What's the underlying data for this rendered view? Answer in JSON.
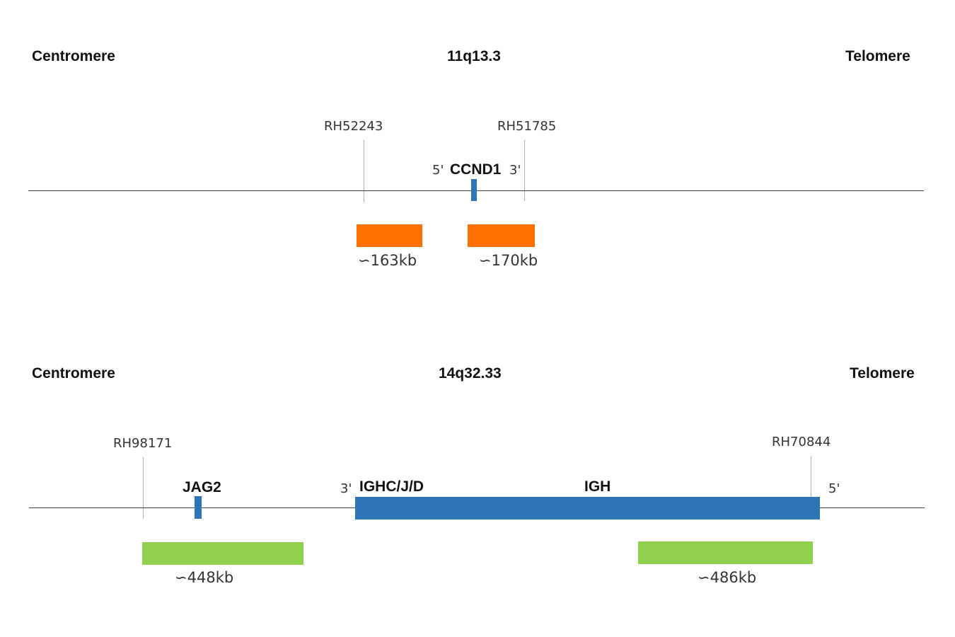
{
  "panel1": {
    "left_label": "Centromere",
    "band": "11q13.3",
    "right_label": "Telomere",
    "markers": [
      "RH52243",
      "RH51785"
    ],
    "gene": {
      "prime5": "5'",
      "name": "CCND1",
      "prime3": "3'"
    },
    "probes": [
      {
        "size": "163kb"
      },
      {
        "size": "170kb"
      }
    ],
    "probe_color": "#ff6f00",
    "gene_color": "#2e75b6"
  },
  "panel2": {
    "left_label": "Centromere",
    "band": "14q32.33",
    "right_label": "Telomere",
    "markers": [
      "RH98171",
      "RH70844"
    ],
    "gene_jag2": "JAG2",
    "igh": {
      "prime3": "3'",
      "segment": "IGHC/J/D",
      "name": "IGH",
      "prime5": "5'"
    },
    "probes": [
      {
        "size": "448kb"
      },
      {
        "size": "486kb"
      }
    ],
    "probe_color": "#92d050",
    "gene_color": "#2e75b6"
  }
}
